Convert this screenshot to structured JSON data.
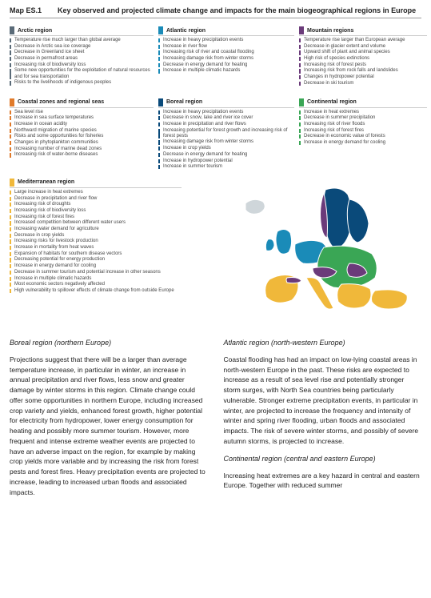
{
  "title": {
    "code": "Map ES.1",
    "text": "Key observed and projected climate change and impacts for the main biogeographical regions in Europe"
  },
  "regions": [
    {
      "name": "Arctic region",
      "swatch": "#5a6b78",
      "items": [
        {
          "t": "Temperature rise much larger than global average",
          "c": "#5a6b78"
        },
        {
          "t": "Decrease in Arctic sea ice coverage",
          "c": "#5a6b78"
        },
        {
          "t": "Decrease in Greenland ice sheet",
          "c": "#5a6b78"
        },
        {
          "t": "Decrease in permafrost areas",
          "c": "#5a6b78"
        },
        {
          "t": "Increasing risk of biodiversity loss",
          "c": "#5a6b78"
        },
        {
          "t": "Some new opportunities for the exploitation of natural resources and for sea transportation",
          "c": "#5a6b78"
        },
        {
          "t": "Risks to the livelihoods of indigenous peoples",
          "c": "#5a6b78"
        }
      ]
    },
    {
      "name": "Atlantic region",
      "swatch": "#1a8bb8",
      "items": [
        {
          "t": "Increase in heavy precipitation events",
          "c": "#1a8bb8"
        },
        {
          "t": "Increase in river flow",
          "c": "#1a8bb8"
        },
        {
          "t": "Increasing risk of river and coastal flooding",
          "c": "#1a8bb8"
        },
        {
          "t": "Increasing damage risk from winter storms",
          "c": "#1a8bb8"
        },
        {
          "t": "Decrease in energy demand for heating",
          "c": "#1a8bb8"
        },
        {
          "t": "Increase in multiple climatic hazards",
          "c": "#1a8bb8"
        }
      ]
    },
    {
      "name": "Mountain regions",
      "swatch": "#6b3b7a",
      "items": [
        {
          "t": "Temperature rise larger than European average",
          "c": "#6b3b7a"
        },
        {
          "t": "Decrease in glacier extent and volume",
          "c": "#6b3b7a"
        },
        {
          "t": "Upward shift of plant and animal species",
          "c": "#6b3b7a"
        },
        {
          "t": "High risk of species extinctions",
          "c": "#6b3b7a"
        },
        {
          "t": "Increasing risk of forest pests",
          "c": "#6b3b7a"
        },
        {
          "t": "Increasing risk from rock falls and landslides",
          "c": "#6b3b7a"
        },
        {
          "t": "Changes in hydropower potential",
          "c": "#6b3b7a"
        },
        {
          "t": "Decrease in ski tourism",
          "c": "#6b3b7a"
        }
      ]
    },
    {
      "name": "Coastal zones and regional seas",
      "swatch": "#e07a2a",
      "items": [
        {
          "t": "Sea level rise",
          "c": "#e07a2a"
        },
        {
          "t": "Increase in sea surface temperatures",
          "c": "#e07a2a"
        },
        {
          "t": "Increase in ocean acidity",
          "c": "#e07a2a"
        },
        {
          "t": "Northward migration of marine species",
          "c": "#e07a2a"
        },
        {
          "t": "Risks and some opportunities for fisheries",
          "c": "#e07a2a"
        },
        {
          "t": "Changes in phytoplankton communities",
          "c": "#e07a2a"
        },
        {
          "t": "Increasing number of marine dead zones",
          "c": "#e07a2a"
        },
        {
          "t": "Increasing risk of water-borne diseases",
          "c": "#e07a2a"
        }
      ]
    },
    {
      "name": "Boreal region",
      "swatch": "#0a4a7a",
      "items": [
        {
          "t": "Increase in heavy precipitation events",
          "c": "#0a4a7a"
        },
        {
          "t": "Decrease in snow, lake and river ice cover",
          "c": "#0a4a7a"
        },
        {
          "t": "Increase in precipitation and river flows",
          "c": "#0a4a7a"
        },
        {
          "t": "Increasing potential for forest growth and increasing risk of forest pests",
          "c": "#0a4a7a"
        },
        {
          "t": "Increasing damage risk from winter storms",
          "c": "#0a4a7a"
        },
        {
          "t": "Increase in crop yields",
          "c": "#0a4a7a"
        },
        {
          "t": "Decrease in energy demand for heating",
          "c": "#0a4a7a"
        },
        {
          "t": "Increase in hydropower potential",
          "c": "#0a4a7a"
        },
        {
          "t": "Increase in summer tourism",
          "c": "#0a4a7a"
        }
      ]
    },
    {
      "name": "Continental region",
      "swatch": "#3aa655",
      "items": [
        {
          "t": "Increase in heat extremes",
          "c": "#3aa655"
        },
        {
          "t": "Decrease in summer precipitation",
          "c": "#3aa655"
        },
        {
          "t": "Increasing risk of river floods",
          "c": "#3aa655"
        },
        {
          "t": "Increasing risk of forest fires",
          "c": "#3aa655"
        },
        {
          "t": "Decrease in economic value of forests",
          "c": "#3aa655"
        },
        {
          "t": "Increase in energy demand for cooling",
          "c": "#3aa655"
        }
      ]
    },
    {
      "name": "Mediterranean region",
      "swatch": "#f0b83a",
      "items": [
        {
          "t": "Large increase in heat extremes",
          "c": "#f0b83a"
        },
        {
          "t": "Decrease in precipitation and river flow",
          "c": "#f0b83a"
        },
        {
          "t": "Increasing risk of droughts",
          "c": "#f0b83a"
        },
        {
          "t": "Increasing risk of biodiversity loss",
          "c": "#f0b83a"
        },
        {
          "t": "Increasing risk of forest fires",
          "c": "#f0b83a"
        },
        {
          "t": "Increased competition between different water users",
          "c": "#f0b83a"
        },
        {
          "t": "Increasing water demand for agriculture",
          "c": "#f0b83a"
        },
        {
          "t": "Decrease in crop yields",
          "c": "#f0b83a"
        },
        {
          "t": "Increasing risks for livestock production",
          "c": "#f0b83a"
        },
        {
          "t": "Increase in mortality from heat waves",
          "c": "#f0b83a"
        },
        {
          "t": "Expansion of habitats for southern disease vectors",
          "c": "#f0b83a"
        },
        {
          "t": "Decreasing potential for energy production",
          "c": "#f0b83a"
        },
        {
          "t": "Increase in energy demand for cooling",
          "c": "#f0b83a"
        },
        {
          "t": "Decrease in summer tourism and potential increase in other seasons",
          "c": "#f0b83a"
        },
        {
          "t": "Increase in multiple climatic hazards",
          "c": "#f0b83a"
        },
        {
          "t": "Most economic sectors negatively affected",
          "c": "#f0b83a"
        },
        {
          "t": "High vulnerability to spillover effects of climate change from outside Europe",
          "c": "#f0b83a"
        }
      ]
    }
  ],
  "map": {
    "colors": {
      "boreal": "#0a4a7a",
      "atlantic": "#1a8bb8",
      "continental": "#3aa655",
      "mountain": "#6b3b7a",
      "mediterranean": "#f0b83a",
      "arctic": "#5a6b78"
    },
    "background": "#ffffff",
    "outline": "#ffffff"
  },
  "body": {
    "left": {
      "heading": "Boreal region (northern Europe)",
      "para": "Projections suggest that there will be a larger than average temperature increase, in particular in winter, an increase in annual precipitation and river flows, less snow and greater damage by winter storms in this region. Climate change could offer some opportunities in northern Europe, including increased crop variety and yields, enhanced forest growth, higher potential for electricity from hydropower, lower energy consumption for heating and possibly more summer tourism. However, more frequent and intense extreme weather events are projected to have an adverse impact on the region, for example by making crop yields more variable and by increasing the risk from forest pests and forest fires. Heavy precipitation events are projected to increase, leading to increased urban floods and associated impacts."
    },
    "right": {
      "heading1": "Atlantic region (north-western Europe)",
      "para1": "Coastal flooding has had an impact on low‑lying coastal areas in north‑western Europe in the past. These risks are expected to increase as a result of sea level rise and potentially stronger storm surges, with North Sea countries being particularly vulnerable. Stronger extreme precipitation events, in particular in winter, are projected to increase the frequency and intensity of winter and spring river flooding, urban floods and associated impacts. The risk of severe winter storms, and possibly of severe autumn storms, is projected to increase.",
      "heading2": "Continental region (central and eastern Europe)",
      "para2": "Increasing heat extremes are a key hazard in central and eastern Europe. Together with reduced summer"
    }
  }
}
